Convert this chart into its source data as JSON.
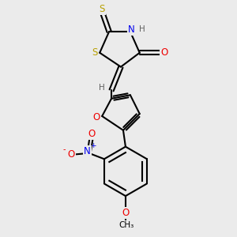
{
  "background_color": "#ebebeb",
  "bond_color": "#000000",
  "atom_colors": {
    "S": "#b8a000",
    "N": "#0000ee",
    "O": "#ee0000",
    "C": "#000000",
    "H": "#606060"
  },
  "figsize": [
    3.0,
    3.0
  ],
  "dpi": 100
}
